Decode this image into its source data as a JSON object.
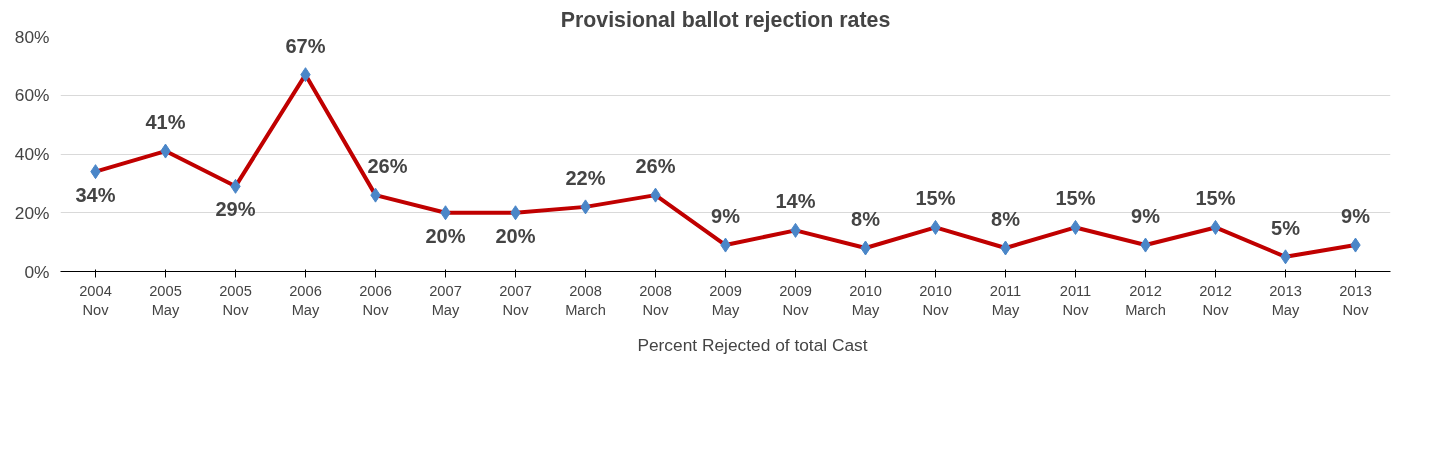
{
  "chart_data": {
    "type": "line",
    "title": "Provisional ballot rejection rates",
    "categories": [
      "2004 Nov",
      "2005 May",
      "2005 Nov",
      "2006 May",
      "2006 Nov",
      "2007 May",
      "2007 Nov",
      "2008 March",
      "2008 Nov",
      "2009 May",
      "2009 Nov",
      "2010 May",
      "2010 Nov",
      "2011 May",
      "2011 Nov",
      "2012 March",
      "2012 Nov",
      "2013 May",
      "2013 Nov"
    ],
    "series": [
      {
        "name": "Percent Rejected of total Cast",
        "color": "#c00000",
        "colors": [
          "#4a86c8",
          "#4a86c8",
          "#4a86c8",
          "#4a86c8",
          "#4a86c8",
          "#4a86c8",
          "#4a86c8",
          "#4a86c8",
          "#4a86c8",
          "#4a86c8",
          "#4a86c8",
          "#4a86c8",
          "#4a86c8",
          "#4a86c8",
          "#4a86c8",
          "#4a86c8",
          "#4a86c8",
          "#4a86c8",
          "#4a86c8"
        ],
        "values": [
          34,
          41,
          29,
          67,
          26,
          20,
          20,
          22,
          26,
          9,
          14,
          8,
          15,
          8,
          15,
          9,
          15,
          5,
          9
        ],
        "value_labels": [
          "34%",
          "41%",
          "29%",
          "67%",
          "26%",
          "20%",
          "20%",
          "22%",
          "26%",
          "9%",
          "14%",
          "8%",
          "15%",
          "8%",
          "15%",
          "9%",
          "15%",
          "5%",
          "9%"
        ]
      }
    ],
    "ylim": [
      0,
      80
    ],
    "yticks": [
      {
        "value": 0,
        "label": "0%"
      },
      {
        "value": 20,
        "label": "20%"
      },
      {
        "value": 40,
        "label": "40%"
      },
      {
        "value": 60,
        "label": "60%"
      },
      {
        "value": 80,
        "label": "80%"
      }
    ],
    "grid": "y",
    "legend": "bottom",
    "marker": "diamond",
    "line_style": "solid"
  }
}
